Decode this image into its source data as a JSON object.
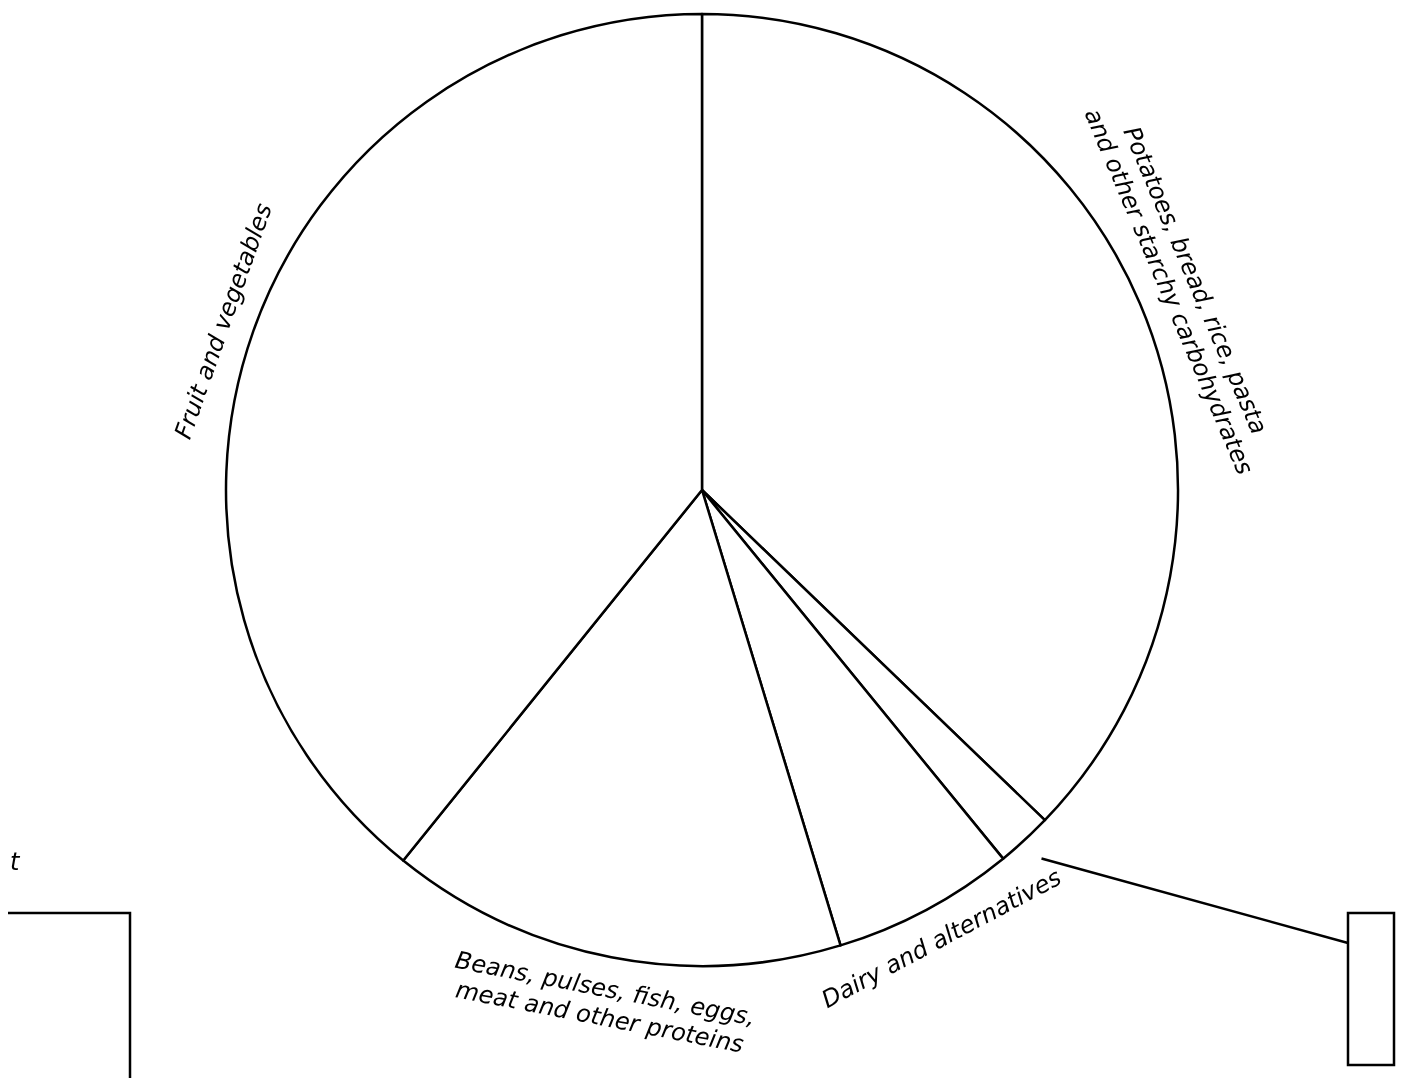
{
  "chart_data": {
    "type": "pie",
    "categories": [
      "Potatoes, bread, rice, pasta and other starchy carbohydrates",
      null,
      "Dairy and alternatives",
      "Beans, pulses, fish, eggs, meat and other proteins",
      "Fruit and vegetables"
    ],
    "values": [
      37.2,
      1.9,
      6.2,
      15.5,
      39.2
    ],
    "colors": [
      "#ffffff",
      "#ffffff",
      "#ffffff",
      "#ffffff",
      "#ffffff"
    ],
    "annotations": [
      "t"
    ]
  }
}
